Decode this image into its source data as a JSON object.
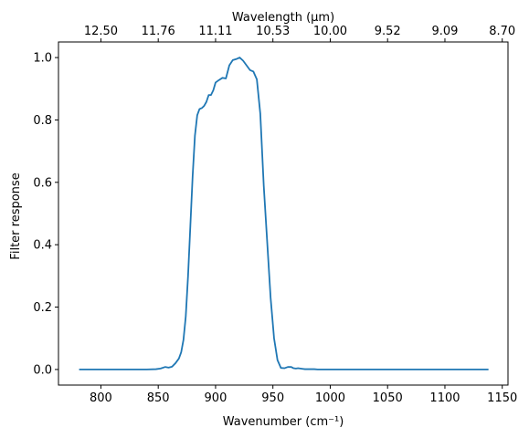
{
  "chart_data": {
    "type": "line",
    "xlabel": "Wavenumber (cm⁻¹)",
    "ylabel": "Filter response",
    "top_xlabel": "Wavelength (μm)",
    "xlim": [
      763,
      1155
    ],
    "ylim": [
      -0.05,
      1.05
    ],
    "grid": false,
    "x_ticks": [
      {
        "value": 800,
        "label": "800"
      },
      {
        "value": 850,
        "label": "850"
      },
      {
        "value": 900,
        "label": "900"
      },
      {
        "value": 950,
        "label": "950"
      },
      {
        "value": 1000,
        "label": "1000"
      },
      {
        "value": 1050,
        "label": "1050"
      },
      {
        "value": 1100,
        "label": "1100"
      },
      {
        "value": 1150,
        "label": "1150"
      }
    ],
    "y_ticks": [
      {
        "value": 0.0,
        "label": "0.0"
      },
      {
        "value": 0.2,
        "label": "0.2"
      },
      {
        "value": 0.4,
        "label": "0.4"
      },
      {
        "value": 0.6,
        "label": "0.6"
      },
      {
        "value": 0.8,
        "label": "0.8"
      },
      {
        "value": 1.0,
        "label": "1.0"
      }
    ],
    "top_ticks": [
      {
        "label": "12.50",
        "wavenumber": 800
      },
      {
        "label": "11.76",
        "wavenumber": 850
      },
      {
        "label": "11.11",
        "wavenumber": 900
      },
      {
        "label": "10.53",
        "wavenumber": 950
      },
      {
        "label": "10.00",
        "wavenumber": 1000
      },
      {
        "label": "9.52",
        "wavenumber": 1050
      },
      {
        "label": "9.09",
        "wavenumber": 1100
      },
      {
        "label": "8.70",
        "wavenumber": 1150
      }
    ],
    "series": [
      {
        "color": "#1f77b4",
        "x": [
          781,
          800,
          820,
          840,
          848,
          852,
          856,
          859,
          862,
          865,
          868,
          870,
          872,
          874,
          876,
          878,
          880,
          882,
          884,
          886,
          888,
          890,
          892,
          894,
          896,
          898,
          900,
          903,
          906,
          909,
          912,
          915,
          918,
          921,
          924,
          927,
          930,
          933,
          936,
          939,
          942,
          945,
          948,
          951,
          954,
          957,
          960,
          963,
          966,
          968,
          970,
          972,
          974,
          976,
          978,
          980,
          983,
          986,
          989,
          992,
          995,
          998,
          1001,
          1004,
          1008,
          1015,
          1020,
          1030,
          1050,
          1080,
          1110,
          1138
        ],
        "y": [
          0.0,
          0.0,
          0.0,
          0.0,
          0.001,
          0.003,
          0.008,
          0.006,
          0.009,
          0.02,
          0.035,
          0.055,
          0.095,
          0.17,
          0.3,
          0.46,
          0.62,
          0.75,
          0.815,
          0.835,
          0.838,
          0.845,
          0.858,
          0.88,
          0.88,
          0.895,
          0.92,
          0.928,
          0.935,
          0.933,
          0.975,
          0.992,
          0.995,
          1.0,
          0.99,
          0.975,
          0.96,
          0.955,
          0.93,
          0.82,
          0.59,
          0.41,
          0.23,
          0.1,
          0.03,
          0.005,
          0.004,
          0.008,
          0.008,
          0.004,
          0.003,
          0.004,
          0.003,
          0.002,
          0.001,
          0.001,
          0.001,
          0.001,
          0.0,
          0.0,
          0.0,
          0.0,
          0.0,
          0.0,
          0.0,
          0.0,
          0.0,
          0.0,
          0.0,
          0.0,
          0.0,
          0.0
        ]
      }
    ]
  }
}
